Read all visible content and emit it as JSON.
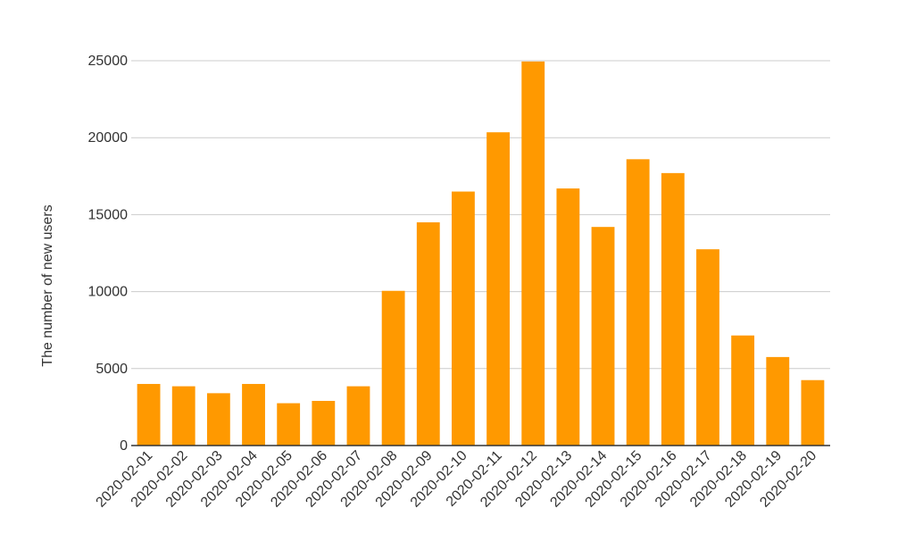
{
  "chart_data": {
    "type": "bar",
    "y_label": "The number of new users",
    "categories": [
      "2020-02-01",
      "2020-02-02",
      "2020-02-03",
      "2020-02-04",
      "2020-02-05",
      "2020-02-06",
      "2020-02-07",
      "2020-02-08",
      "2020-02-09",
      "2020-02-10",
      "2020-02-11",
      "2020-02-12",
      "2020-02-13",
      "2020-02-14",
      "2020-02-15",
      "2020-02-16",
      "2020-02-17",
      "2020-02-18",
      "2020-02-19",
      "2020-02-20"
    ],
    "values": [
      4000,
      3850,
      3400,
      4000,
      2750,
      2900,
      3850,
      10050,
      14500,
      16500,
      20350,
      24950,
      16700,
      14200,
      18600,
      17700,
      12750,
      7150,
      5750,
      4250
    ],
    "color": "#ff9900",
    "ylim": [
      0,
      25000
    ],
    "yticks": [
      0,
      5000,
      10000,
      15000,
      20000,
      25000
    ],
    "grid": true
  }
}
